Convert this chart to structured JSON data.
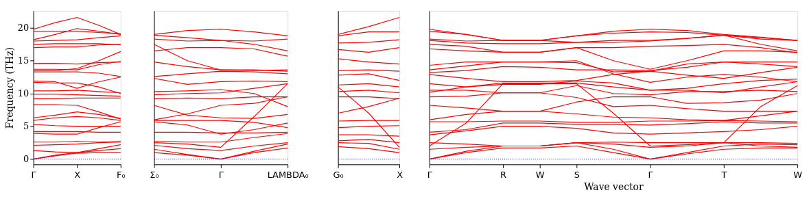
{
  "chart_data": [
    {
      "type": "line",
      "ylabel": "Frequency (THz)",
      "categories": [
        "Γ",
        null,
        "X",
        null,
        "F₀"
      ],
      "ylim": [
        -0.8,
        22.6
      ],
      "yticks": [
        0,
        5,
        10,
        15,
        20
      ],
      "grid": false,
      "legend": false,
      "ref_lines": [
        {
          "axis": "y",
          "value": 0,
          "color": "#0000ff",
          "line_style": "dotted"
        }
      ],
      "series": [
        {
          "color": "#ff0000",
          "values": [
            0,
            0.5,
            0.9,
            1.0,
            1.0
          ]
        },
        {
          "color": "#ff0000",
          "values": [
            0,
            0.6,
            1.0,
            1.6,
            2.2
          ]
        },
        {
          "color": "#ff0000",
          "values": [
            1.3,
            1.1,
            1.0,
            1.3,
            1.6
          ]
        },
        {
          "color": "#ff0000",
          "values": [
            2.1,
            2.2,
            2.3,
            2.5,
            2.6
          ]
        },
        {
          "color": "#ff0000",
          "values": [
            2.6,
            2.6,
            2.7,
            2.6,
            2.7
          ]
        },
        {
          "color": "#ff0000",
          "values": [
            3.9,
            3.8,
            3.8,
            4.8,
            5.7
          ]
        },
        {
          "color": "#ff0000",
          "values": [
            4.2,
            4.2,
            4.2,
            4.1,
            4.1
          ]
        },
        {
          "color": "#ff0000",
          "values": [
            5.3,
            5.1,
            5.0,
            5.0,
            5.0
          ]
        },
        {
          "color": "#ff0000",
          "values": [
            5.9,
            6.3,
            6.5,
            6.3,
            5.9
          ]
        },
        {
          "color": "#ff0000",
          "values": [
            6.3,
            6.7,
            7.2,
            6.8,
            6.2
          ]
        },
        {
          "color": "#ff0000",
          "values": [
            8.3,
            8.3,
            8.2,
            7.2,
            6.1
          ]
        },
        {
          "color": "#ff0000",
          "values": [
            9.2,
            9.2,
            9.3,
            9.3,
            9.3
          ]
        },
        {
          "color": "#ff0000",
          "values": [
            9.9,
            9.9,
            9.8,
            9.7,
            9.6
          ]
        },
        {
          "color": "#ff0000",
          "values": [
            10.4,
            10.4,
            10.5,
            10.3,
            10.1
          ]
        },
        {
          "color": "#ff0000",
          "values": [
            11.7,
            11.6,
            11.6,
            11.0,
            10.0
          ]
        },
        {
          "color": "#ff0000",
          "values": [
            11.9,
            11.8,
            10.8,
            11.8,
            12.5
          ]
        },
        {
          "color": "#ff0000",
          "values": [
            13.3,
            13.3,
            13.3,
            13.1,
            12.6
          ]
        },
        {
          "color": "#ff0000",
          "values": [
            13.7,
            13.7,
            13.6,
            14.4,
            14.9
          ]
        },
        {
          "color": "#ff0000",
          "values": [
            14.6,
            14.6,
            14.5,
            14.7,
            14.8
          ]
        },
        {
          "color": "#ff0000",
          "values": [
            13.5,
            13.5,
            13.8,
            15.0,
            16.4
          ]
        },
        {
          "color": "#ff0000",
          "values": [
            17.0,
            17.1,
            17.1,
            17.4,
            17.5
          ]
        },
        {
          "color": "#ff0000",
          "values": [
            17.5,
            17.6,
            17.6,
            17.6,
            17.4
          ]
        },
        {
          "color": "#ff0000",
          "values": [
            18.0,
            18.1,
            18.2,
            18.5,
            18.8
          ]
        },
        {
          "color": "#ff0000",
          "values": [
            18.2,
            19.0,
            19.9,
            19.5,
            19.0
          ]
        },
        {
          "color": "#ff0000",
          "values": [
            19.5,
            19.5,
            19.5,
            19.3,
            19.1
          ]
        },
        {
          "color": "#ff0000",
          "values": [
            19.8,
            20.8,
            21.6,
            20.4,
            19.0
          ]
        }
      ]
    },
    {
      "type": "line",
      "categories": [
        "Σ₀",
        null,
        "Γ",
        null,
        "LAMBDA₀"
      ],
      "ylim": [
        -0.8,
        22.6
      ],
      "yticks": [
        0,
        5,
        10,
        15,
        20
      ],
      "tick_labels": "x",
      "grid": false,
      "legend": false,
      "ref_lines": [
        {
          "axis": "y",
          "value": 0,
          "color": "#0000ff",
          "line_style": "dotted"
        }
      ],
      "series": [
        {
          "color": "#ff0000",
          "values": [
            1.0,
            0.6,
            0,
            1.0,
            1.7
          ]
        },
        {
          "color": "#ff0000",
          "values": [
            1.5,
            0.7,
            0,
            1.2,
            2.3
          ]
        },
        {
          "color": "#ff0000",
          "values": [
            2.1,
            1.6,
            1.3,
            2.0,
            2.5
          ]
        },
        {
          "color": "#ff0000",
          "values": [
            2.5,
            2.3,
            1.8,
            6.5,
            11.5
          ]
        },
        {
          "color": "#ff0000",
          "values": [
            2.7,
            2.6,
            2.6,
            3.3,
            3.9
          ]
        },
        {
          "color": "#ff0000",
          "values": [
            4.1,
            4.1,
            4.0,
            4.0,
            4.1
          ]
        },
        {
          "color": "#ff0000",
          "values": [
            5.7,
            5.2,
            3.8,
            4.5,
            5.5
          ]
        },
        {
          "color": "#ff0000",
          "values": [
            5.9,
            5.9,
            5.9,
            5.6,
            4.8
          ]
        },
        {
          "color": "#ff0000",
          "values": [
            6.0,
            6.9,
            8.2,
            8.5,
            9.5
          ]
        },
        {
          "color": "#ff0000",
          "values": [
            8.2,
            6.7,
            6.3,
            6.2,
            6.8
          ]
        },
        {
          "color": "#ff0000",
          "values": [
            9.2,
            9.3,
            9.2,
            9.5,
            9.5
          ]
        },
        {
          "color": "#ff0000",
          "values": [
            9.8,
            10.0,
            10.1,
            10.8,
            11.5
          ]
        },
        {
          "color": "#ff0000",
          "values": [
            10.3,
            10.4,
            10.6,
            10.0,
            8.0
          ]
        },
        {
          "color": "#ff0000",
          "values": [
            12.3,
            11.4,
            11.8,
            11.9,
            11.8
          ]
        },
        {
          "color": "#ff0000",
          "values": [
            12.6,
            13.0,
            13.4,
            13.3,
            13.0
          ]
        },
        {
          "color": "#ff0000",
          "values": [
            14.8,
            14.1,
            13.6,
            13.5,
            13.6
          ]
        },
        {
          "color": "#ff0000",
          "values": [
            17.5,
            15.0,
            13.6,
            13.6,
            13.4
          ]
        },
        {
          "color": "#ff0000",
          "values": [
            16.5,
            17.0,
            17.0,
            16.8,
            15.7
          ]
        },
        {
          "color": "#ff0000",
          "values": [
            18.3,
            18.0,
            18.1,
            17.5,
            16.5
          ]
        },
        {
          "color": "#ff0000",
          "values": [
            19.0,
            19.6,
            19.8,
            19.4,
            18.8
          ]
        },
        {
          "color": "#ff0000",
          "values": [
            18.9,
            18.5,
            18.1,
            18.0,
            18.3
          ]
        }
      ]
    },
    {
      "type": "line",
      "categories": [
        "G₀",
        null,
        "X"
      ],
      "ylim": [
        -0.8,
        22.6
      ],
      "yticks": [
        0,
        5,
        10,
        15,
        20
      ],
      "tick_labels": "x",
      "grid": false,
      "legend": false,
      "ref_lines": [
        {
          "axis": "y",
          "value": 0,
          "color": "#0000ff",
          "line_style": "dotted"
        }
      ],
      "series": [
        {
          "color": "#ff0000",
          "values": [
            1.9,
            1.6,
            1.0
          ]
        },
        {
          "color": "#ff0000",
          "values": [
            2.5,
            2.4,
            1.5
          ]
        },
        {
          "color": "#ff0000",
          "values": [
            2.8,
            3.0,
            2.5
          ]
        },
        {
          "color": "#ff0000",
          "values": [
            3.7,
            3.7,
            3.5
          ]
        },
        {
          "color": "#ff0000",
          "values": [
            4.8,
            5.0,
            5.1
          ]
        },
        {
          "color": "#ff0000",
          "values": [
            5.8,
            5.9,
            5.9
          ]
        },
        {
          "color": "#ff0000",
          "values": [
            11.0,
            7.0,
            1.8
          ]
        },
        {
          "color": "#ff0000",
          "values": [
            7.0,
            8.0,
            9.3
          ]
        },
        {
          "color": "#ff0000",
          "values": [
            9.5,
            9.5,
            9.2
          ]
        },
        {
          "color": "#ff0000",
          "values": [
            10.3,
            10.5,
            10.1
          ]
        },
        {
          "color": "#ff0000",
          "values": [
            11.3,
            11.5,
            11.0
          ]
        },
        {
          "color": "#ff0000",
          "values": [
            12.8,
            13.0,
            12.0
          ]
        },
        {
          "color": "#ff0000",
          "values": [
            13.5,
            13.6,
            13.4
          ]
        },
        {
          "color": "#ff0000",
          "values": [
            15.3,
            14.8,
            14.5
          ]
        },
        {
          "color": "#ff0000",
          "values": [
            16.7,
            16.3,
            17.0
          ]
        },
        {
          "color": "#ff0000",
          "values": [
            17.7,
            17.8,
            18.2
          ]
        },
        {
          "color": "#ff0000",
          "values": [
            18.8,
            19.4,
            19.4
          ]
        },
        {
          "color": "#ff0000",
          "values": [
            19.0,
            20.2,
            21.6
          ]
        }
      ]
    },
    {
      "type": "line",
      "xlabel": "Wave vector",
      "categories": [
        "Γ",
        null,
        "R",
        "W",
        "S",
        null,
        "Γ",
        null,
        "T",
        null,
        "W"
      ],
      "ylim": [
        -0.8,
        22.6
      ],
      "yticks": [
        0,
        5,
        10,
        15,
        20
      ],
      "tick_labels": "x",
      "grid": false,
      "legend": false,
      "ref_lines": [
        {
          "axis": "y",
          "value": 0,
          "color": "#0000ff",
          "line_style": "dotted"
        }
      ],
      "series": [
        {
          "color": "#ff0000",
          "values": [
            0,
            1.0,
            1.7,
            1.7,
            2.0,
            1.0,
            0,
            0.8,
            1.5,
            1.7,
            1.7
          ]
        },
        {
          "color": "#ff0000",
          "values": [
            0,
            1.2,
            2.0,
            2.0,
            2.5,
            1.5,
            0,
            1.0,
            2.0,
            2.3,
            2.2
          ]
        },
        {
          "color": "#ff0000",
          "values": [
            1.5,
            1.8,
            2.0,
            2.0,
            2.5,
            2.3,
            1.8,
            2.0,
            2.5,
            2.0,
            1.8
          ]
        },
        {
          "color": "#ff0000",
          "values": [
            2.5,
            2.3,
            2.0,
            2.0,
            2.5,
            2.6,
            2.5,
            2.5,
            2.5,
            2.5,
            2.4
          ]
        },
        {
          "color": "#ff0000",
          "values": [
            2.0,
            5.5,
            11.5,
            11.5,
            11.5,
            7.0,
            2.0,
            2.2,
            2.5,
            8.0,
            11.2
          ]
        },
        {
          "color": "#ff0000",
          "values": [
            3.7,
            4.3,
            5.0,
            5.0,
            4.7,
            4.0,
            3.8,
            4.0,
            4.2,
            4.5,
            5.0
          ]
        },
        {
          "color": "#ff0000",
          "values": [
            4.1,
            4.5,
            5.5,
            5.5,
            5.3,
            5.3,
            5.2,
            5.4,
            5.7,
            5.5,
            5.5
          ]
        },
        {
          "color": "#ff0000",
          "values": [
            5.7,
            5.7,
            5.8,
            5.8,
            5.6,
            5.6,
            5.8,
            5.8,
            5.9,
            5.8,
            5.7
          ]
        },
        {
          "color": "#ff0000",
          "values": [
            6.0,
            6.8,
            7.3,
            7.3,
            6.9,
            6.4,
            6.3,
            6.0,
            5.9,
            6.6,
            7.3
          ]
        },
        {
          "color": "#ff0000",
          "values": [
            8.2,
            7.8,
            7.3,
            7.3,
            8.7,
            9.5,
            9.5,
            8.5,
            8.6,
            9.0,
            10.0
          ]
        },
        {
          "color": "#ff0000",
          "values": [
            9.5,
            9.6,
            10.1,
            10.1,
            9.4,
            8.0,
            8.2,
            7.7,
            7.3,
            7.3,
            7.3
          ]
        },
        {
          "color": "#ff0000",
          "values": [
            10.5,
            10.5,
            10.1,
            10.1,
            11.2,
            10.0,
            9.8,
            10.3,
            10.3,
            10.5,
            10.3
          ]
        },
        {
          "color": "#ff0000",
          "values": [
            10.2,
            11.0,
            11.6,
            11.6,
            11.6,
            11.0,
            10.5,
            10.5,
            10.1,
            11.0,
            11.8
          ]
        },
        {
          "color": "#ff0000",
          "values": [
            11.5,
            11.0,
            11.4,
            11.4,
            11.9,
            11.6,
            10.5,
            10.8,
            11.5,
            12.0,
            12.2
          ]
        },
        {
          "color": "#ff0000",
          "values": [
            12.9,
            12.3,
            11.8,
            11.8,
            12.0,
            12.9,
            13.4,
            12.8,
            12.3,
            13.2,
            14.0
          ]
        },
        {
          "color": "#ff0000",
          "values": [
            13.2,
            13.5,
            14.1,
            14.0,
            13.6,
            13.6,
            13.5,
            14.0,
            14.8,
            14.5,
            14.1
          ]
        },
        {
          "color": "#ff0000",
          "values": [
            13.6,
            14.2,
            14.8,
            14.8,
            14.7,
            13.3,
            13.4,
            14.5,
            14.8,
            14.8,
            14.8
          ]
        },
        {
          "color": "#ff0000",
          "values": [
            14.3,
            14.8,
            14.8,
            14.8,
            15.0,
            13.0,
            11.7,
            12.5,
            12.9,
            12.5,
            11.8
          ]
        },
        {
          "color": "#ff0000",
          "values": [
            16.8,
            16.5,
            16.3,
            16.3,
            17.0,
            15.0,
            13.7,
            15.0,
            16.5,
            16.5,
            16.3
          ]
        },
        {
          "color": "#ff0000",
          "values": [
            17.5,
            17.2,
            16.3,
            16.3,
            17.0,
            17.0,
            17.2,
            17.3,
            17.5,
            17.0,
            16.2
          ]
        },
        {
          "color": "#ff0000",
          "values": [
            18.1,
            17.7,
            17.6,
            17.6,
            17.8,
            18.1,
            18.1,
            18.4,
            18.9,
            18.5,
            18.1
          ]
        },
        {
          "color": "#ff0000",
          "values": [
            18.3,
            18.0,
            18.1,
            18.1,
            17.8,
            17.8,
            18.0,
            18.4,
            18.9,
            17.5,
            16.5
          ]
        },
        {
          "color": "#ff0000",
          "values": [
            19.8,
            19.0,
            18.1,
            18.1,
            18.8,
            19.5,
            19.8,
            19.6,
            19.0,
            18.6,
            18.1
          ]
        },
        {
          "color": "#ff0000",
          "values": [
            19.5,
            19.0,
            18.1,
            18.1,
            18.8,
            19.2,
            19.4,
            19.3,
            18.9,
            18.3,
            18.1
          ]
        }
      ]
    }
  ]
}
